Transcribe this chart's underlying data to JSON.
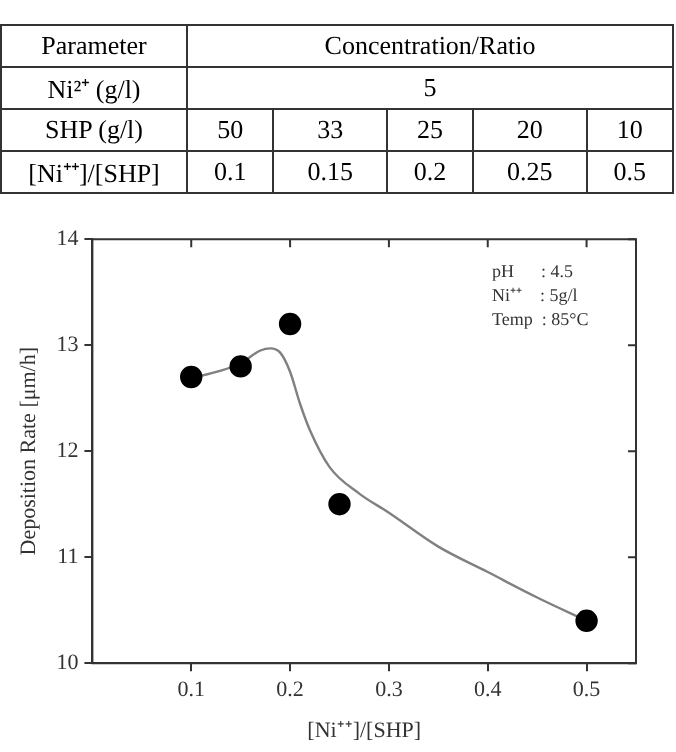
{
  "chart_data": {
    "type": "scatter",
    "xlabel": "[Ni⁺⁺]/[SHP]",
    "ylabel": "Deposition Rate [μm/h]",
    "xlim": [
      0,
      0.55
    ],
    "xticks": [
      0.1,
      0.2,
      0.3,
      0.4,
      0.5
    ],
    "ylim": [
      10,
      14
    ],
    "yticks": [
      10,
      11,
      12,
      13,
      14
    ],
    "grid": false,
    "legend": false,
    "annotations": [
      "Parameter",
      "Concentration/Ratio",
      "Ni²⁺ (g/l)",
      "5",
      "SHP (g/l)",
      "50",
      "33",
      "25",
      "20",
      "10",
      "[Ni⁺⁺]/[SHP]",
      "0.1",
      "0.15",
      "0.2",
      "0.25",
      "0.5",
      "pH      : 4.5",
      "Ni⁺⁺    : 5g/l",
      "Temp  : 85°C"
    ],
    "series": [
      {
        "type": "scatter",
        "color": "#000000",
        "marker": "circle",
        "x": [
          0.1,
          0.15,
          0.2,
          0.25,
          0.5
        ],
        "values": [
          12.7,
          12.8,
          13.2,
          11.5,
          10.4
        ]
      },
      {
        "type": "line",
        "color": "#808080",
        "marker": "none",
        "line_style": "solid",
        "x": [
          0.1,
          0.13,
          0.15,
          0.17,
          0.18,
          0.19,
          0.2,
          0.21,
          0.22,
          0.24,
          0.27,
          0.3,
          0.35,
          0.4,
          0.45,
          0.5
        ],
        "values": [
          12.69,
          12.76,
          12.83,
          12.95,
          12.97,
          12.93,
          12.75,
          12.45,
          12.2,
          11.85,
          11.6,
          11.42,
          11.1,
          10.86,
          10.62,
          10.4
        ]
      }
    ]
  }
}
